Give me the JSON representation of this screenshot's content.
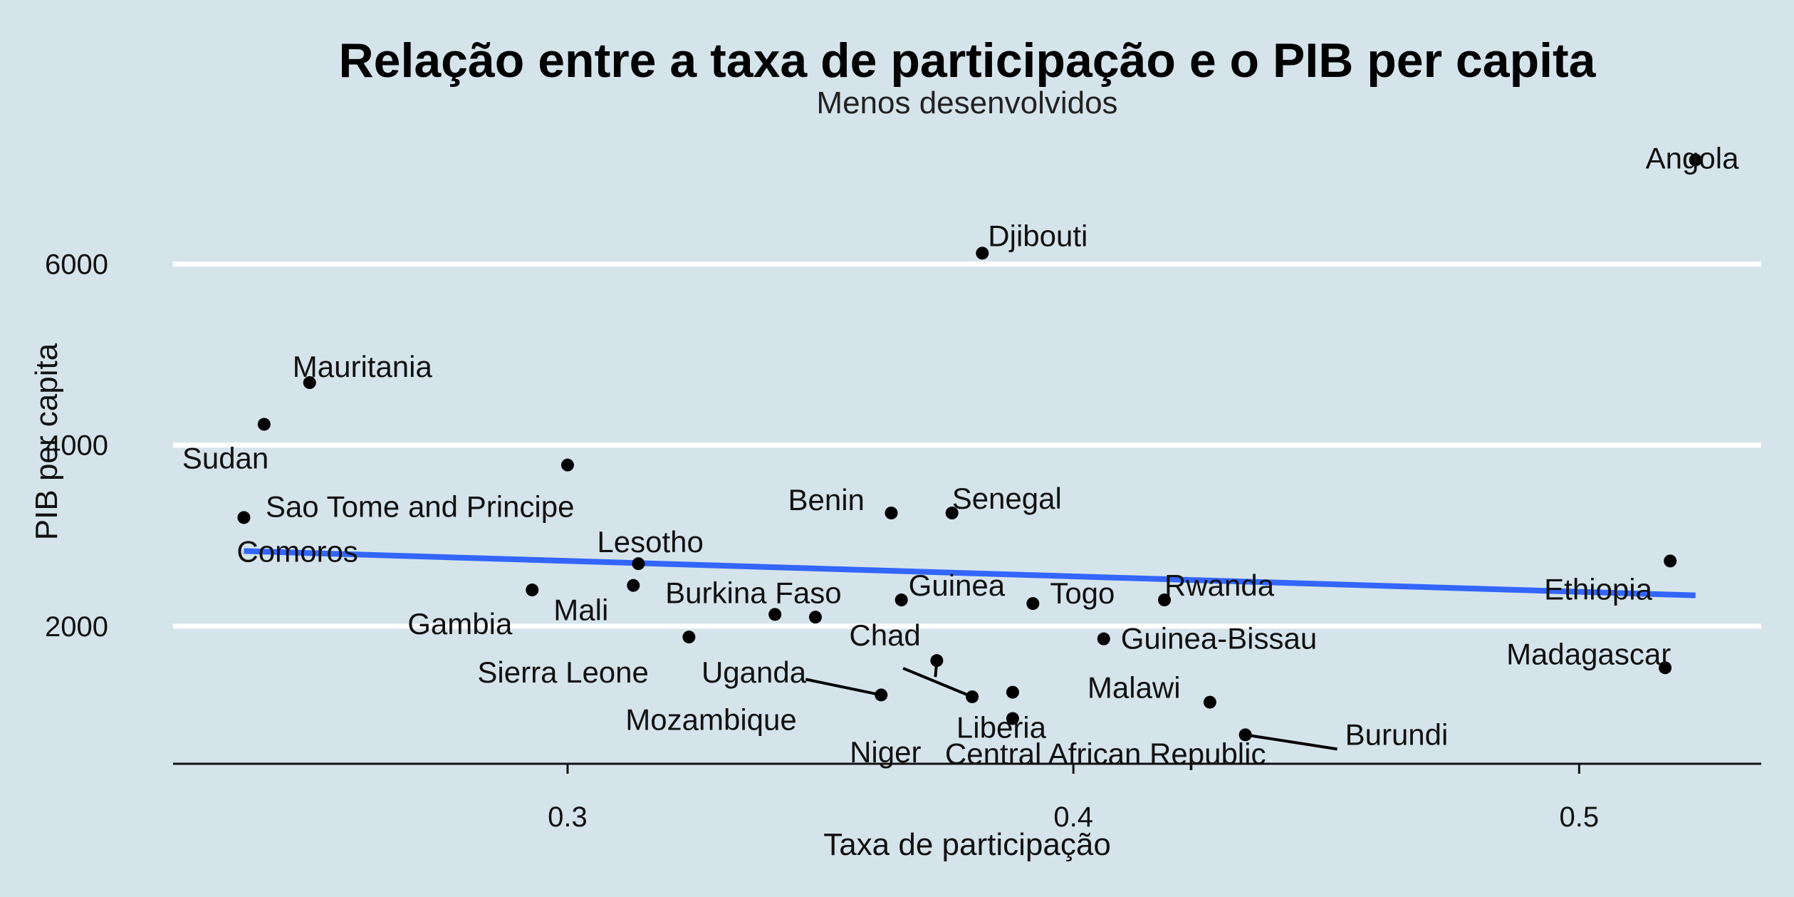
{
  "chart_data": {
    "type": "scatter",
    "title": "Relação entre a taxa de participação e o PIB per capita",
    "subtitle": "Menos desenvolvidos",
    "xlabel": "Taxa de participação",
    "ylabel": "PIB per capita",
    "xlim": [
      0.222,
      0.536
    ],
    "ylim": [
      480,
      7500
    ],
    "x_ticks": [
      0.3,
      0.4,
      0.5
    ],
    "x_tick_labels": [
      "0.3",
      "0.4",
      "0.5"
    ],
    "y_ticks": [
      2000,
      4000,
      6000
    ],
    "y_tick_labels": [
      "2000",
      "4000",
      "6000"
    ],
    "grid": "horizontal major lines only",
    "colors": {
      "background": "#d5e4eb",
      "grid": "#ffffff",
      "points": "#000000",
      "trend_line": "#3366ff"
    },
    "trend_line": {
      "x": [
        0.236,
        0.523
      ],
      "y": [
        2830,
        2340
      ]
    },
    "points": [
      {
        "name": "Angola",
        "x": 0.523,
        "y": 7150
      },
      {
        "name": "Djibouti",
        "x": 0.382,
        "y": 6120
      },
      {
        "name": "Mauritania",
        "x": 0.249,
        "y": 4690
      },
      {
        "name": "Sudan",
        "x": 0.24,
        "y": 4230
      },
      {
        "name": "Sao Tome and Principe",
        "x": 0.3,
        "y": 3780
      },
      {
        "name": "Benin",
        "x": 0.364,
        "y": 3250
      },
      {
        "name": "Senegal",
        "x": 0.376,
        "y": 3250
      },
      {
        "name": "Comoros",
        "x": 0.236,
        "y": 3200
      },
      {
        "name": "Lesotho",
        "x": 0.314,
        "y": 2690
      },
      {
        "name": "Ethiopia",
        "x": 0.518,
        "y": 2720
      },
      {
        "name": "Mali",
        "x": 0.313,
        "y": 2450
      },
      {
        "name": "Gambia",
        "x": 0.293,
        "y": 2400
      },
      {
        "name": "Guinea",
        "x": 0.366,
        "y": 2290
      },
      {
        "name": "Rwanda",
        "x": 0.418,
        "y": 2290
      },
      {
        "name": "Togo",
        "x": 0.392,
        "y": 2250
      },
      {
        "name": "Burkina Faso",
        "x": 0.341,
        "y": 2130
      },
      {
        "name": "Uganda",
        "x": 0.349,
        "y": 2100
      },
      {
        "name": "Sierra Leone",
        "x": 0.324,
        "y": 1880
      },
      {
        "name": "Guinea-Bissau",
        "x": 0.406,
        "y": 1860
      },
      {
        "name": "Chad",
        "x": 0.373,
        "y": 1620
      },
      {
        "name": "Madagascar",
        "x": 0.517,
        "y": 1540
      },
      {
        "name": "Liberia",
        "x": 0.388,
        "y": 1270
      },
      {
        "name": "Mozambique",
        "x": 0.362,
        "y": 1240
      },
      {
        "name": "Niger",
        "x": 0.38,
        "y": 1220
      },
      {
        "name": "Malawi",
        "x": 0.427,
        "y": 1160
      },
      {
        "name": "Central African Republic",
        "x": 0.388,
        "y": 980
      },
      {
        "name": "Burundi",
        "x": 0.434,
        "y": 800
      }
    ]
  }
}
